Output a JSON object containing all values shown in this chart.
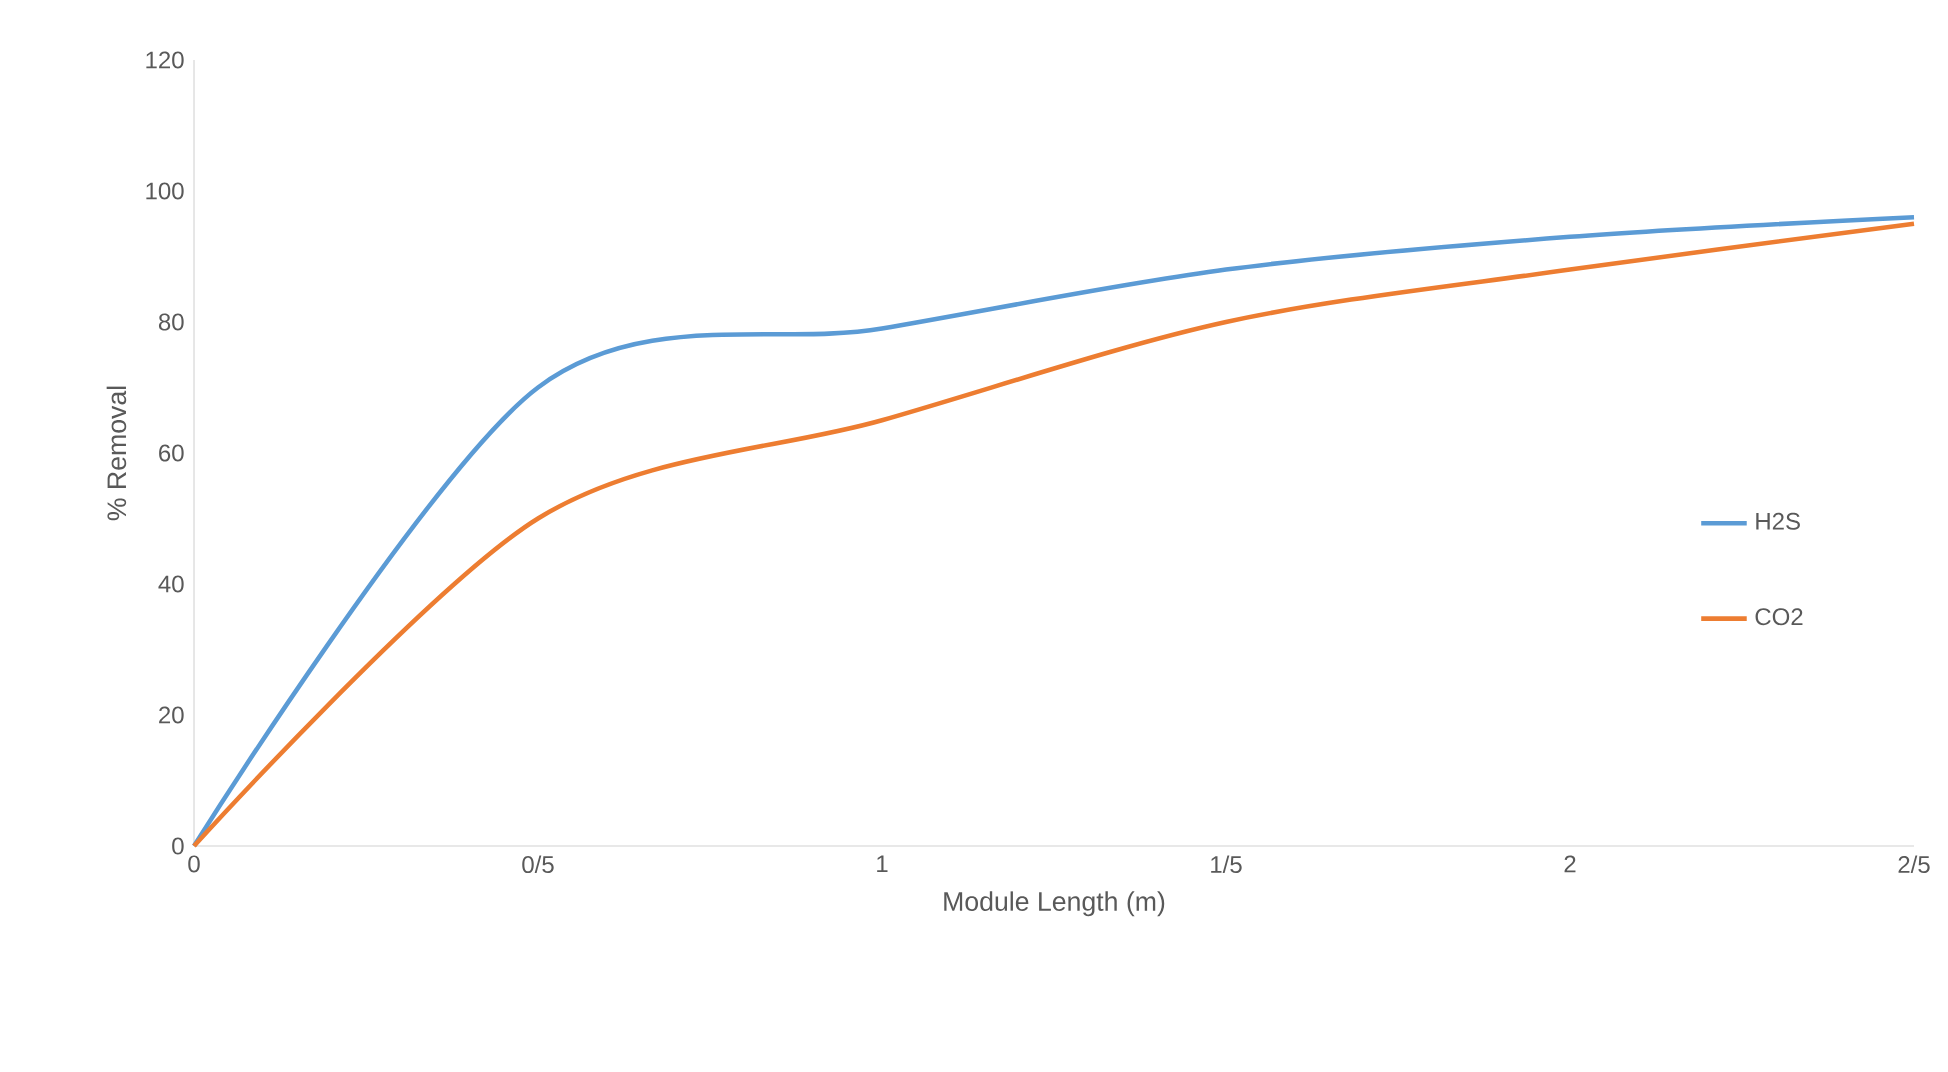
{
  "chart_data": {
    "type": "line",
    "xlabel": "Module Length (m)",
    "ylabel": "% Removal",
    "categories": [
      "0",
      "0/5",
      "1",
      "1/5",
      "2",
      "2/5"
    ],
    "series": [
      {
        "name": "H2S",
        "color": "#5b9bd5",
        "values": [
          0,
          70,
          79,
          88,
          93,
          96
        ]
      },
      {
        "name": "CO2",
        "color": "#ed7d31",
        "values": [
          0,
          50,
          65,
          80,
          88,
          95
        ]
      }
    ],
    "ylim": [
      0,
      120
    ],
    "yticks": [
      0,
      20,
      40,
      60,
      80,
      100,
      120
    ],
    "grid": false,
    "legend": "right"
  }
}
